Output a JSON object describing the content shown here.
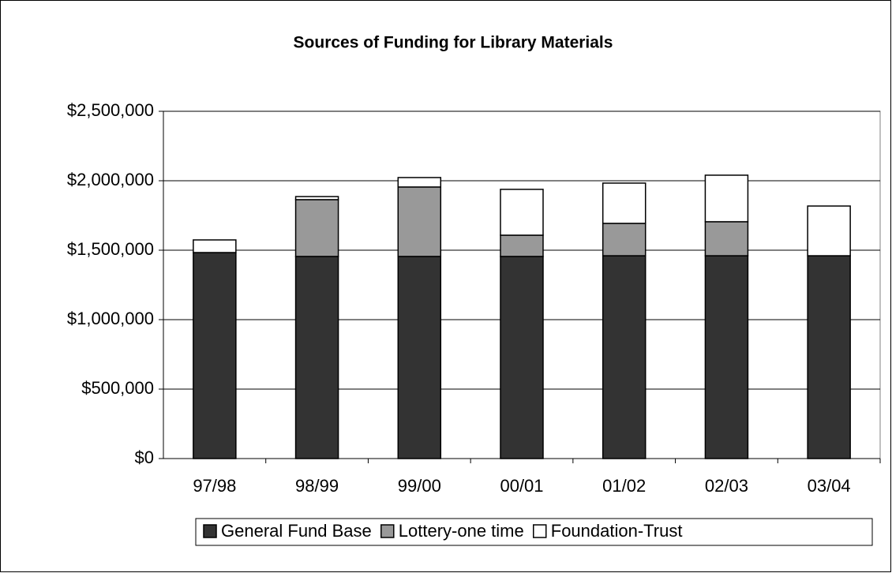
{
  "chart_data": {
    "type": "stacked_bar",
    "title": "Sources of Funding for Library Materials",
    "categories": [
      "97/98",
      "98/99",
      "99/00",
      "00/01",
      "01/02",
      "02/03",
      "03/04"
    ],
    "series": [
      {
        "name": "General Fund Base",
        "color": "#333333",
        "values": [
          1483000,
          1455000,
          1455000,
          1455000,
          1460000,
          1460000,
          1460000
        ]
      },
      {
        "name": "Lottery-one time",
        "color": "#999999",
        "values": [
          0,
          409000,
          500000,
          153000,
          233000,
          245000,
          0
        ]
      },
      {
        "name": "Foundation-Trust",
        "color": "#ffffff",
        "values": [
          91000,
          22000,
          68000,
          330000,
          290000,
          335000,
          358000
        ]
      }
    ],
    "ylim": [
      0,
      2500000
    ],
    "yticks": [
      {
        "value": 0,
        "label": "$0"
      },
      {
        "value": 500000,
        "label": "$500,000"
      },
      {
        "value": 1000000,
        "label": "$1,000,000"
      },
      {
        "value": 1500000,
        "label": "$1,500,000"
      },
      {
        "value": 2000000,
        "label": "$2,000,000"
      },
      {
        "value": 2500000,
        "label": "$2,500,000"
      }
    ],
    "grid": true,
    "legend": "bottom"
  }
}
